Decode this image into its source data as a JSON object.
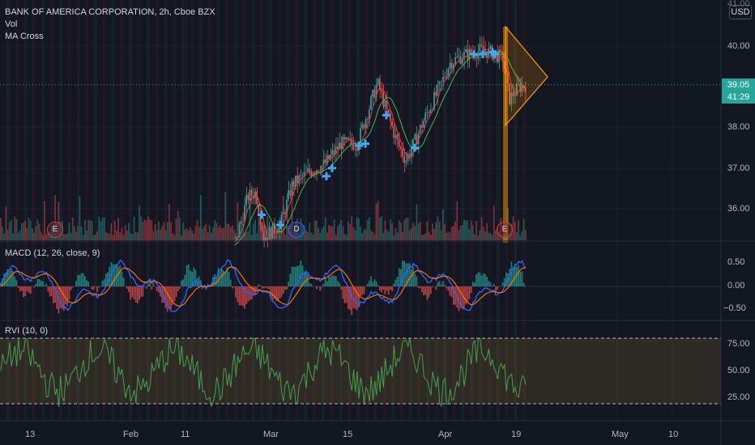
{
  "legend": {
    "title": "BANK OF AMERICA CORPORATION, 2h, Cboe BZX",
    "vol": "Vol",
    "ma_cross": "MA Cross",
    "macd": "MACD (12, 26, close, 9)",
    "rvi": "RVI (10, 0)"
  },
  "currency_button": "USD",
  "price_axis": {
    "ticks": [
      "41.00",
      "40.00",
      "38.00",
      "37.00",
      "36.00"
    ],
    "last_price": "39.05",
    "countdown": "41:29"
  },
  "macd_axis": {
    "ticks": [
      "0.50",
      "0.00",
      "−0.50"
    ]
  },
  "rvi_axis": {
    "ticks": [
      "75.00",
      "50.00",
      "25.00"
    ]
  },
  "time_axis": {
    "ticks": [
      "13",
      "Feb",
      "11",
      "Mar",
      "15",
      "Apr",
      "19",
      "May",
      "10"
    ]
  },
  "markers": {
    "earnings": "E",
    "dividend": "D"
  },
  "colors": {
    "background": "#131722",
    "up": "#26a69a",
    "down": "#ef5350",
    "ma_fast": "#f23645",
    "ma_slow": "#4caf50",
    "cross": "#42a5f5",
    "macd_line": "#2962ff",
    "signal_line": "#ff6d00",
    "rvi_line": "#43a047",
    "rvi_band": "#786232",
    "triangle": "#ff9800"
  },
  "chart_data": {
    "type": "line",
    "symbol": "BANK OF AMERICA CORPORATION",
    "interval": "2h",
    "exchange": "Cboe BZX",
    "price_range": [
      35.5,
      41.0
    ],
    "last_price": 39.05,
    "ma_cross_points": [
      35.85,
      35.6,
      36.8,
      37.0,
      37.55,
      37.6,
      38.3,
      37.5,
      39.8,
      39.8,
      39.85,
      39.8
    ],
    "macd_range": [
      -0.6,
      0.65
    ],
    "rvi_range": [
      10,
      80
    ],
    "rvi_levels": [
      80,
      20
    ]
  }
}
